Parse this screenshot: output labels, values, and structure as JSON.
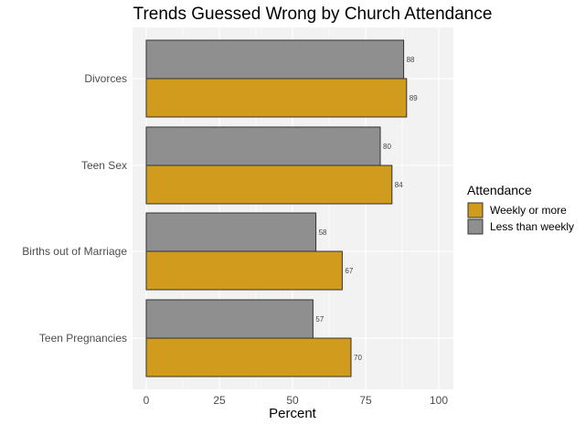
{
  "chart_data": {
    "type": "bar",
    "orientation": "horizontal",
    "title": "Trends Guessed Wrong by Church Attendance",
    "xlabel": "Percent",
    "ylabel": "",
    "xlim": [
      0,
      100
    ],
    "xticks": [
      0,
      25,
      50,
      75,
      100
    ],
    "categories": [
      "Divorces",
      "Teen Sex",
      "Births out of Marriage",
      "Teen Pregnancies"
    ],
    "series": [
      {
        "name": "Less than weekly",
        "color": "#8f8f8f",
        "values": [
          88,
          80,
          58,
          57
        ]
      },
      {
        "name": "Weekly or more",
        "color": "#d19c1d",
        "values": [
          89,
          84,
          67,
          70
        ]
      }
    ],
    "legend": {
      "title": "Attendance",
      "placement": "right",
      "entries": [
        "Weekly or more",
        "Less than weekly"
      ]
    },
    "grid": true,
    "panel_background": "#f2f2f2"
  }
}
